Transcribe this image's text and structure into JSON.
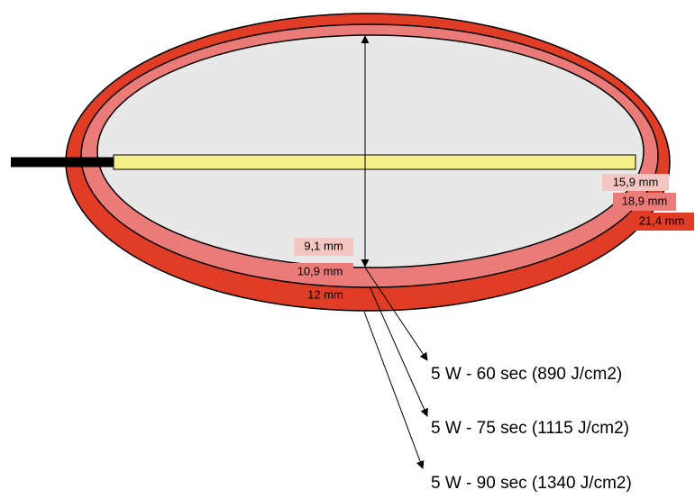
{
  "diagram": {
    "horizontal_labels": [
      "15,9 mm",
      "18,9 mm",
      "21,4 mm"
    ],
    "vertical_labels": [
      "9,1 mm",
      "10,9 mm",
      "12 mm"
    ],
    "settings": [
      "5 W - 60 sec (890 J/cm2)",
      "5 W - 75 sec (1115 J/cm2)",
      "5 W - 90 sec (1340 J/cm2)"
    ]
  }
}
